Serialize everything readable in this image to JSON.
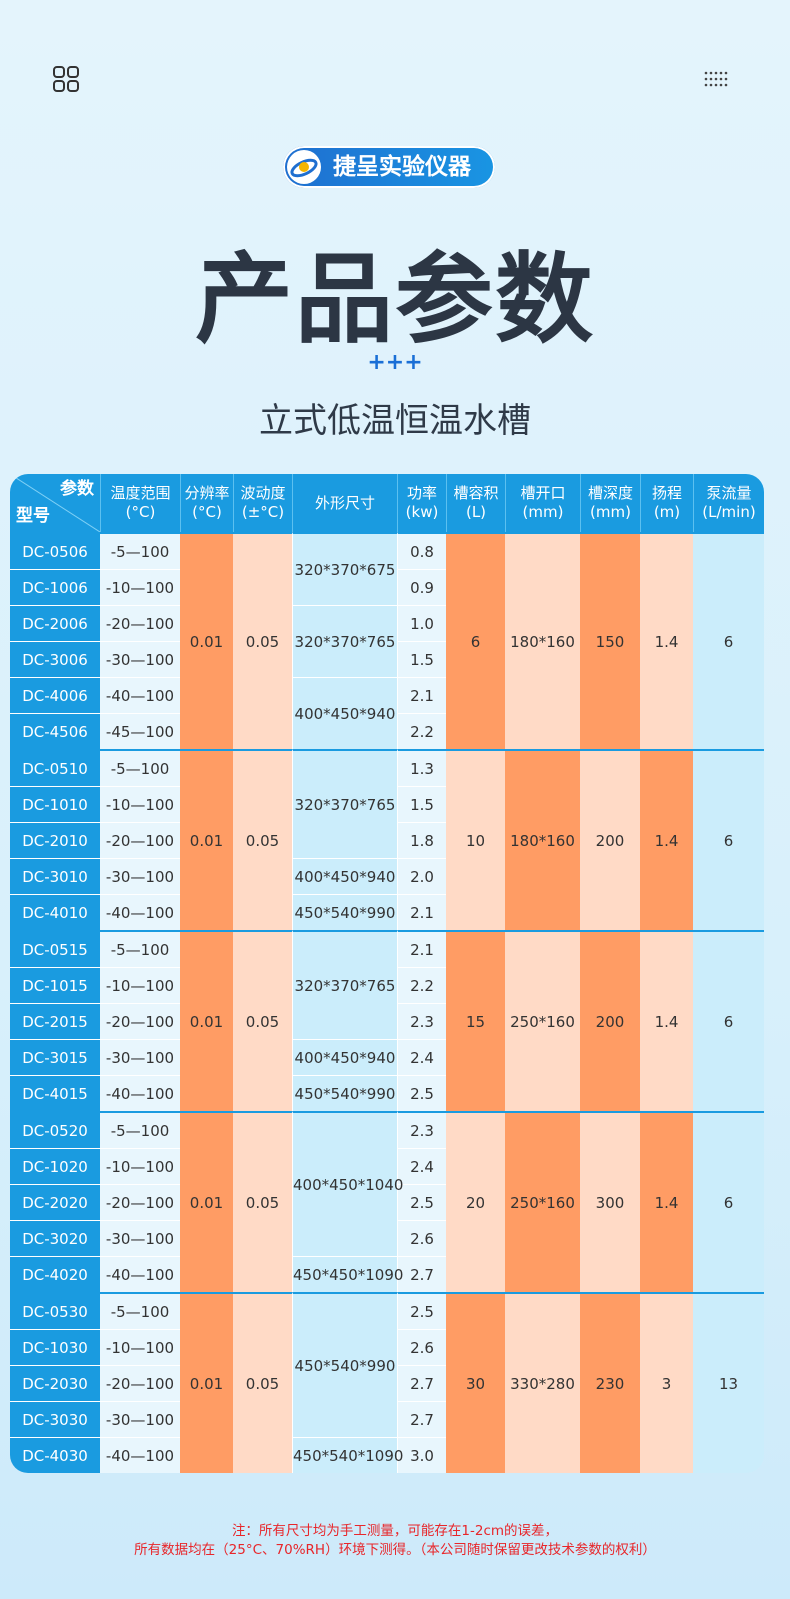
{
  "header": {
    "brand": "捷呈实验仪器",
    "title": "产品参数",
    "decoration": "+++",
    "subtitle": "立式低温恒温水槽"
  },
  "table": {
    "corner": {
      "top": "参数",
      "bottom": "型号"
    },
    "columns": [
      [
        "温度范围",
        "(°C)"
      ],
      [
        "分辨率",
        "(°C)"
      ],
      [
        "波动度",
        "(±°C)"
      ],
      [
        "外形尺寸"
      ],
      [
        "功率",
        "(kw)"
      ],
      [
        "槽容积",
        "(L)"
      ],
      [
        "槽开口",
        "(mm)"
      ],
      [
        "槽深度",
        "(mm)"
      ],
      [
        "扬程",
        "(m)"
      ],
      [
        "泵流量",
        "(L/min)"
      ]
    ],
    "groups": [
      {
        "rows": [
          {
            "model": "DC-0506",
            "temp": "-5—100",
            "power": "0.8"
          },
          {
            "model": "DC-1006",
            "temp": "-10—100",
            "power": "0.9"
          },
          {
            "model": "DC-2006",
            "temp": "-20—100",
            "power": "1.0"
          },
          {
            "model": "DC-3006",
            "temp": "-30—100",
            "power": "1.5"
          },
          {
            "model": "DC-4006",
            "temp": "-40—100",
            "power": "2.1"
          },
          {
            "model": "DC-4506",
            "temp": "-45—100",
            "power": "2.2"
          }
        ],
        "dims": [
          "320*370*675",
          null,
          "320*370*765",
          null,
          "400*450*940",
          null
        ],
        "resolution": "0.01",
        "fluctuation": "0.05",
        "volume": "6",
        "opening": "180*160",
        "depth": "150",
        "head": "1.4",
        "flow": "6"
      },
      {
        "rows": [
          {
            "model": "DC-0510",
            "temp": "-5—100",
            "power": "1.3"
          },
          {
            "model": "DC-1010",
            "temp": "-10—100",
            "power": "1.5"
          },
          {
            "model": "DC-2010",
            "temp": "-20—100",
            "power": "1.8"
          },
          {
            "model": "DC-3010",
            "temp": "-30—100",
            "power": "2.0"
          },
          {
            "model": "DC-4010",
            "temp": "-40—100",
            "power": "2.1"
          }
        ],
        "dims": [
          "320*370*765",
          null,
          null,
          "400*450*940",
          "450*540*990"
        ],
        "resolution": "0.01",
        "fluctuation": "0.05",
        "volume": "10",
        "opening": "180*160",
        "depth": "200",
        "head": "1.4",
        "flow": "6"
      },
      {
        "rows": [
          {
            "model": "DC-0515",
            "temp": "-5—100",
            "power": "2.1"
          },
          {
            "model": "DC-1015",
            "temp": "-10—100",
            "power": "2.2"
          },
          {
            "model": "DC-2015",
            "temp": "-20—100",
            "power": "2.3"
          },
          {
            "model": "DC-3015",
            "temp": "-30—100",
            "power": "2.4"
          },
          {
            "model": "DC-4015",
            "temp": "-40—100",
            "power": "2.5"
          }
        ],
        "dims": [
          "320*370*765",
          null,
          null,
          "400*450*940",
          "450*540*990"
        ],
        "resolution": "0.01",
        "fluctuation": "0.05",
        "volume": "15",
        "opening": "250*160",
        "depth": "200",
        "head": "1.4",
        "flow": "6"
      },
      {
        "rows": [
          {
            "model": "DC-0520",
            "temp": "-5—100",
            "power": "2.3"
          },
          {
            "model": "DC-1020",
            "temp": "-10—100",
            "power": "2.4"
          },
          {
            "model": "DC-2020",
            "temp": "-20—100",
            "power": "2.5"
          },
          {
            "model": "DC-3020",
            "temp": "-30—100",
            "power": "2.6"
          },
          {
            "model": "DC-4020",
            "temp": "-40—100",
            "power": "2.7"
          }
        ],
        "dims": [
          "400*450*1040",
          null,
          null,
          null,
          "450*450*1090"
        ],
        "resolution": "0.01",
        "fluctuation": "0.05",
        "volume": "20",
        "opening": "250*160",
        "depth": "300",
        "head": "1.4",
        "flow": "6"
      },
      {
        "rows": [
          {
            "model": "DC-0530",
            "temp": "-5—100",
            "power": "2.5"
          },
          {
            "model": "DC-1030",
            "temp": "-10—100",
            "power": "2.6"
          },
          {
            "model": "DC-2030",
            "temp": "-20—100",
            "power": "2.7"
          },
          {
            "model": "DC-3030",
            "temp": "-30—100",
            "power": "2.7"
          },
          {
            "model": "DC-4030",
            "temp": "-40—100",
            "power": "3.0"
          }
        ],
        "dims": [
          "450*540*990",
          null,
          null,
          null,
          "450*540*1090"
        ],
        "resolution": "0.01",
        "fluctuation": "0.05",
        "volume": "30",
        "opening": "330*280",
        "depth": "230",
        "head": "3",
        "flow": "13"
      }
    ]
  },
  "footer": {
    "lines": [
      "注：所有尺寸均为手工测量，可能存在1-2cm的误差，",
      "所有数据均在（25°C、70%RH）环境下测得。（本公司随时保留更改技术参数的权利）"
    ]
  }
}
